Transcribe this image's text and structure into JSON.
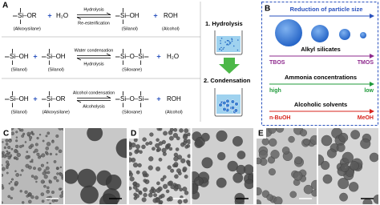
{
  "panel_a": {
    "label": "A",
    "reactions": [
      {
        "left": [
          {
            "formula": "Si–OR",
            "name": "(Alkoxysilane)"
          },
          {
            "formula": "H₂O"
          }
        ],
        "plus": "+",
        "forward": "Hydrolysis",
        "reverse": "Re-esterification",
        "right": [
          {
            "formula": "Si–OH",
            "name": "(Silanol)"
          },
          {
            "formula": "ROH",
            "name": "(Alcohol)"
          }
        ]
      },
      {
        "left": [
          {
            "formula": "Si–OH",
            "name": "(Silanol)"
          },
          {
            "formula": "Si–OH",
            "name": "(Silanol)"
          }
        ],
        "plus": "+",
        "forward": "Water condensation",
        "reverse": "Hydrolysis",
        "right": [
          {
            "formula": "Si–O–Si",
            "name": "(Siloxane)"
          },
          {
            "formula": "H₂O"
          }
        ]
      },
      {
        "left": [
          {
            "formula": "Si–OH",
            "name": "(Silanol)"
          },
          {
            "formula": "Si–OR",
            "name": "(Alkoxysilane)"
          }
        ],
        "plus": "+",
        "forward": "Alcohol condensation",
        "reverse": "Alcoholysis",
        "right": [
          {
            "formula": "Si–O–Si",
            "name": "(Siloxane)"
          },
          {
            "formula": "ROH",
            "name": "(Alcohol)"
          }
        ]
      }
    ],
    "steps": [
      "1. Hydrolysis",
      "2. Condensation"
    ]
  },
  "panel_b": {
    "label": "B",
    "title": "Reduction of particle size",
    "title_color": "#2a52be",
    "factors": [
      {
        "name": "Alkyl silicates",
        "start": "TBOS",
        "end": "TMOS",
        "color": "#8e2a8e"
      },
      {
        "name": "Ammonia concentrations",
        "start": "high",
        "end": "low",
        "color": "#1f9a3a"
      },
      {
        "name": "Alcoholic solvents",
        "start": "n-BuOH",
        "end": "MeOH",
        "color": "#d7261e"
      }
    ]
  },
  "panels": [
    {
      "label": "C"
    },
    {
      "label": "D"
    },
    {
      "label": "E"
    }
  ]
}
